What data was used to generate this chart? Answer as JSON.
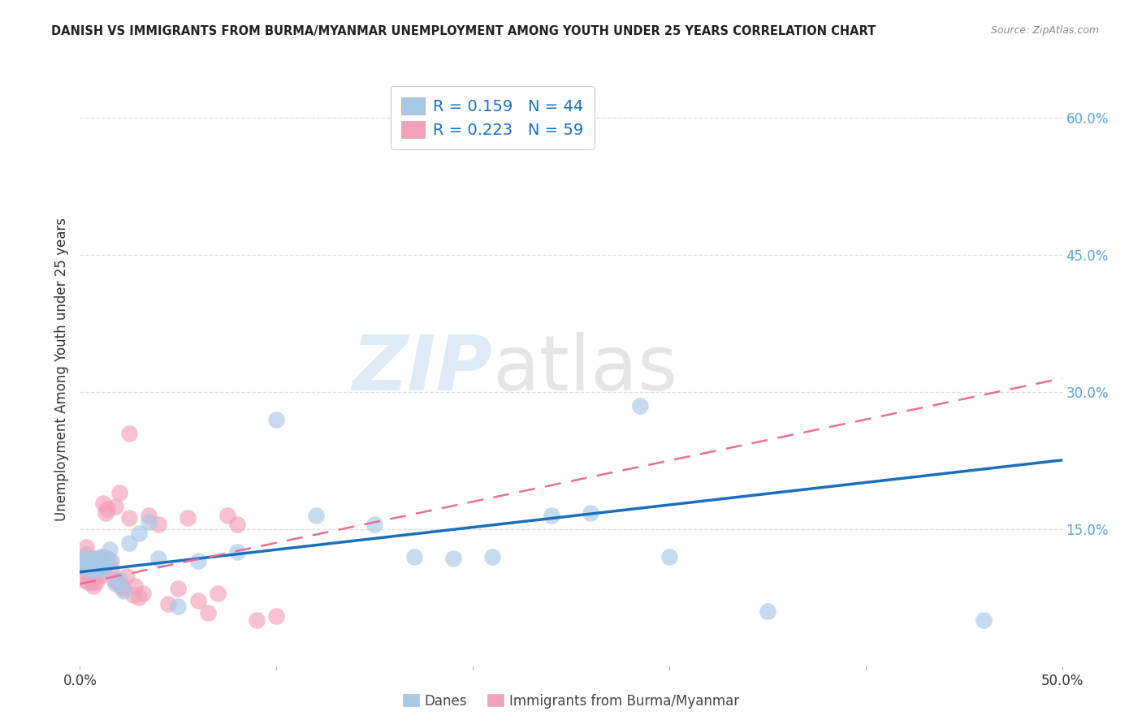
{
  "title": "DANISH VS IMMIGRANTS FROM BURMA/MYANMAR UNEMPLOYMENT AMONG YOUTH UNDER 25 YEARS CORRELATION CHART",
  "source": "Source: ZipAtlas.com",
  "ylabel": "Unemployment Among Youth under 25 years",
  "xlabel_danes": "Danes",
  "xlabel_immigrants": "Immigrants from Burma/Myanmar",
  "xlim": [
    0,
    0.5
  ],
  "ylim": [
    0,
    0.65
  ],
  "xticks": [
    0.0,
    0.1,
    0.2,
    0.3,
    0.4,
    0.5
  ],
  "xticklabels": [
    "0.0%",
    "",
    "",
    "",
    "",
    "50.0%"
  ],
  "yticks_right": [
    0.15,
    0.3,
    0.45,
    0.6
  ],
  "ytick_right_labels": [
    "15.0%",
    "30.0%",
    "45.0%",
    "60.0%"
  ],
  "danes_R": 0.159,
  "danes_N": 44,
  "immigrants_R": 0.223,
  "immigrants_N": 59,
  "danes_color": "#a8c8e8",
  "immigrants_color": "#f4a0b8",
  "danes_line_color": "#1a6fbd",
  "immigrants_line_color": "#e87090",
  "danes_x": [
    0.001,
    0.002,
    0.003,
    0.003,
    0.004,
    0.004,
    0.005,
    0.005,
    0.006,
    0.006,
    0.007,
    0.007,
    0.008,
    0.008,
    0.009,
    0.01,
    0.01,
    0.011,
    0.012,
    0.013,
    0.014,
    0.015,
    0.016,
    0.018,
    0.02,
    0.022,
    0.025,
    0.03,
    0.035,
    0.04,
    0.05,
    0.06,
    0.08,
    0.1,
    0.12,
    0.15,
    0.17,
    0.19,
    0.21,
    0.24,
    0.26,
    0.3,
    0.35,
    0.46
  ],
  "danes_y": [
    0.115,
    0.12,
    0.108,
    0.112,
    0.11,
    0.105,
    0.113,
    0.117,
    0.112,
    0.108,
    0.11,
    0.105,
    0.118,
    0.112,
    0.108,
    0.115,
    0.11,
    0.12,
    0.105,
    0.112,
    0.118,
    0.128,
    0.115,
    0.09,
    0.095,
    0.082,
    0.135,
    0.145,
    0.158,
    0.118,
    0.065,
    0.115,
    0.125,
    0.27,
    0.165,
    0.155,
    0.12,
    0.118,
    0.12,
    0.165,
    0.168,
    0.12,
    0.06,
    0.05
  ],
  "danes_outlier_x": [
    0.285
  ],
  "danes_outlier_y": [
    0.285
  ],
  "immigrants_x": [
    0.001,
    0.001,
    0.002,
    0.002,
    0.002,
    0.003,
    0.003,
    0.003,
    0.004,
    0.004,
    0.004,
    0.005,
    0.005,
    0.005,
    0.006,
    0.006,
    0.006,
    0.007,
    0.007,
    0.007,
    0.008,
    0.008,
    0.008,
    0.009,
    0.009,
    0.01,
    0.01,
    0.01,
    0.011,
    0.012,
    0.012,
    0.013,
    0.014,
    0.015,
    0.016,
    0.017,
    0.018,
    0.019,
    0.02,
    0.021,
    0.022,
    0.024,
    0.025,
    0.027,
    0.028,
    0.03,
    0.032,
    0.035,
    0.04,
    0.045,
    0.05,
    0.055,
    0.06,
    0.065,
    0.07,
    0.075,
    0.08,
    0.09,
    0.1
  ],
  "immigrants_y": [
    0.112,
    0.105,
    0.118,
    0.108,
    0.095,
    0.122,
    0.13,
    0.115,
    0.118,
    0.105,
    0.092,
    0.108,
    0.118,
    0.098,
    0.105,
    0.118,
    0.092,
    0.108,
    0.098,
    0.088,
    0.115,
    0.105,
    0.092,
    0.112,
    0.098,
    0.108,
    0.118,
    0.098,
    0.115,
    0.178,
    0.12,
    0.168,
    0.172,
    0.115,
    0.105,
    0.095,
    0.175,
    0.092,
    0.19,
    0.088,
    0.085,
    0.098,
    0.162,
    0.078,
    0.088,
    0.075,
    0.08,
    0.165,
    0.155,
    0.068,
    0.085,
    0.162,
    0.072,
    0.058,
    0.08,
    0.165,
    0.155,
    0.05,
    0.055
  ],
  "immigrants_outlier_x": [
    0.025
  ],
  "immigrants_outlier_y": [
    0.255
  ],
  "background_color": "#ffffff",
  "grid_color": "#cccccc",
  "title_color": "#222222",
  "legend_text_color": "#1a6fbd",
  "right_axis_color": "#5ba3d9",
  "danes_line_intercept": 0.103,
  "danes_line_slope": 0.245,
  "immigrants_line_intercept": 0.09,
  "immigrants_line_slope": 0.45
}
